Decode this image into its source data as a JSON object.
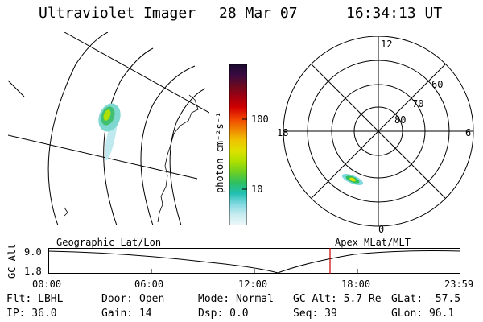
{
  "header": {
    "instrument": "Ultraviolet Imager",
    "date": "28 Mar 07",
    "time": "16:34:13 UT"
  },
  "polar_plot": {
    "clock_labels": [
      "12",
      "18",
      "6",
      "0"
    ],
    "lat_labels": [
      "60",
      "70",
      "80"
    ]
  },
  "colorbar": {
    "unit_label": "photon cm⁻²s⁻¹",
    "tick_labels": [
      "100",
      "10"
    ],
    "colors": [
      "#1a0a30",
      "#3a0a40",
      "#6a0a20",
      "#a00010",
      "#d00000",
      "#f04000",
      "#f08000",
      "#f0c000",
      "#e0e000",
      "#b0e000",
      "#70d020",
      "#30c060",
      "#20c0b0",
      "#80d8e0",
      "#c8ecf0",
      "#eef8fa"
    ]
  },
  "timeline": {
    "left_label": "Geographic Lat/Lon",
    "right_label": "Apex MLat/MLT",
    "y_axis_label": "GC Alt",
    "y_ticks": [
      "9.0",
      "1.8"
    ],
    "time_ticks": [
      "00:00",
      "06:00",
      "12:00",
      "18:00",
      "23:59"
    ],
    "marker_color": "#cc0000"
  },
  "status": {
    "row1": {
      "filter": "Flt: LBHL",
      "door": "Door: Open",
      "mode": "Mode: Normal",
      "gc_alt": "GC Alt: 5.7 Re",
      "glat": "GLat: -57.5"
    },
    "row2": {
      "ip": "IP: 36.0",
      "gain": "Gain: 14",
      "dsp": "Dsp:    0.0",
      "seq": "Seq: 39",
      "glon": "GLon:  96.1"
    }
  }
}
